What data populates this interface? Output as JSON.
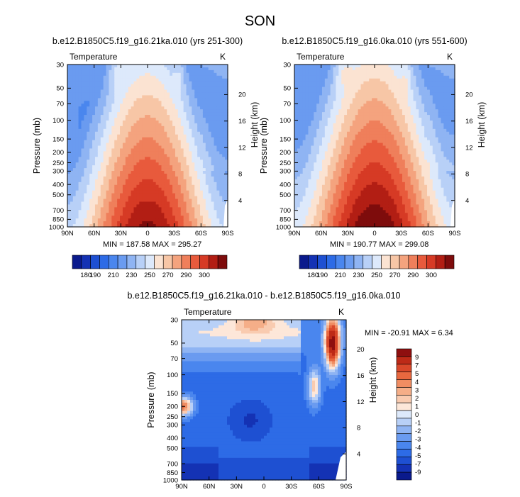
{
  "page": {
    "title": "SON"
  },
  "colors": {
    "abs_scale": [
      "#0a1a8c",
      "#1432b4",
      "#1e50d2",
      "#2d6be6",
      "#4a86ee",
      "#6a9bf0",
      "#8fb4f3",
      "#b8d0f7",
      "#dde9fb",
      "#fbe3d2",
      "#f7c6a6",
      "#f4a37e",
      "#ef7f5b",
      "#e85a3c",
      "#d63a25",
      "#b21e14",
      "#7e0c0c"
    ],
    "diff_scale": [
      "#0a1a8c",
      "#1432b4",
      "#1e50d2",
      "#2d6be6",
      "#4a86ee",
      "#6a9bf0",
      "#8fb4f3",
      "#b8d0f7",
      "#dde9fb",
      "#fde7d9",
      "#f9cbb0",
      "#f5ae88",
      "#f08d62",
      "#e8683f",
      "#d9482a",
      "#bd2a17",
      "#8e0f0f"
    ]
  },
  "chart_data": [
    {
      "type": "heatmap",
      "title": "b.e12.B1850C5.f19_g16.21ka.010 (yrs 251-300)",
      "left_label": "Temperature",
      "right_label": "K",
      "xlabel": "",
      "ylabel": "Pressure (mb)",
      "ylabel_right": "Height (km)",
      "x_ticks": [
        "90N",
        "60N",
        "30N",
        "0",
        "30S",
        "60S",
        "90S"
      ],
      "y_ticks": [
        "30",
        "50",
        "70",
        "100",
        "150",
        "200",
        "250",
        "300",
        "400",
        "500",
        "700",
        "850",
        "1000"
      ],
      "y_ticks_right": [
        "20",
        "16",
        "12",
        "8",
        "4"
      ],
      "min_label": "MIN = 187.58",
      "max_label": "MAX = 295.27",
      "min": 187.58,
      "max": 295.27,
      "colorbar_labels": [
        "180",
        "190",
        "210",
        "230",
        "250",
        "270",
        "290",
        "300"
      ]
    },
    {
      "type": "heatmap",
      "title": "b.e12.B1850C5.f19_g16.0ka.010 (yrs 551-600)",
      "left_label": "Temperature",
      "right_label": "K",
      "xlabel": "",
      "ylabel": "Pressure (mb)",
      "ylabel_right": "Height (km)",
      "x_ticks": [
        "90N",
        "60N",
        "30N",
        "0",
        "30S",
        "60S",
        "90S"
      ],
      "y_ticks": [
        "30",
        "50",
        "70",
        "100",
        "150",
        "200",
        "250",
        "300",
        "400",
        "500",
        "700",
        "850",
        "1000"
      ],
      "y_ticks_right": [
        "20",
        "16",
        "12",
        "8",
        "4"
      ],
      "min_label": "MIN = 190.77",
      "max_label": "MAX = 299.08",
      "min": 190.77,
      "max": 299.08,
      "colorbar_labels": [
        "180",
        "190",
        "210",
        "230",
        "250",
        "270",
        "290",
        "300"
      ]
    },
    {
      "type": "heatmap",
      "title": "b.e12.B1850C5.f19_g16.21ka.010 - b.e12.B1850C5.f19_g16.0ka.010",
      "left_label": "Temperature",
      "right_label": "K",
      "xlabel": "",
      "ylabel": "Pressure (mb)",
      "ylabel_right": "Height (km)",
      "x_ticks": [
        "90N",
        "60N",
        "30N",
        "0",
        "30S",
        "60S",
        "90S"
      ],
      "y_ticks": [
        "30",
        "50",
        "70",
        "100",
        "150",
        "200",
        "250",
        "300",
        "400",
        "500",
        "700",
        "850",
        "1000"
      ],
      "y_ticks_right": [
        "20",
        "16",
        "12",
        "8",
        "4"
      ],
      "min_label": "MIN = -20.91",
      "max_label": "MAX =   6.34",
      "min": -20.91,
      "max": 6.34,
      "colorbar_labels": [
        "9",
        "7",
        "5",
        "4",
        "3",
        "2",
        "1",
        "0",
        "-1",
        "-2",
        "-3",
        "-4",
        "-5",
        "-7",
        "-9"
      ]
    }
  ]
}
